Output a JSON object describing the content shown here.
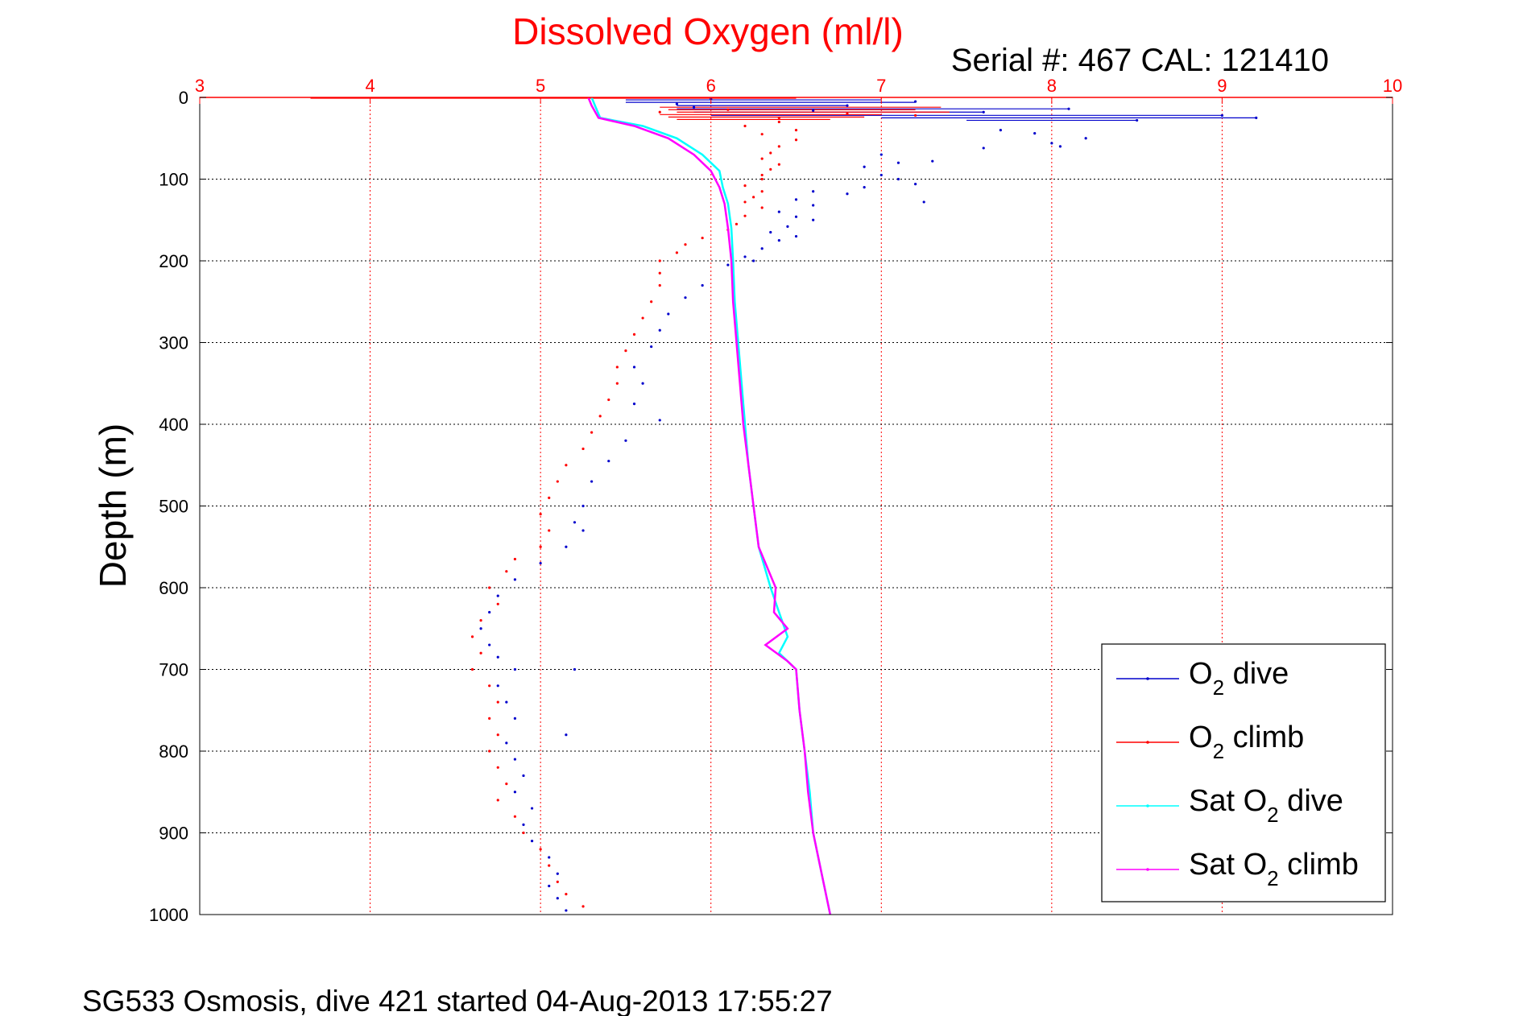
{
  "chart_data": {
    "type": "scatter",
    "title": "Dissolved Oxygen (ml/l)",
    "serial_label": "Serial #: 467  CAL: 121410",
    "ylabel": "Depth (m)",
    "footer": "SG533 Osmosis, dive 421 started 04-Aug-2013 17:55:27",
    "xlim": [
      3,
      10
    ],
    "ylim": [
      0,
      1000
    ],
    "y_reversed": true,
    "x_axis_position": "top",
    "x_ticks": [
      3,
      4,
      5,
      6,
      7,
      8,
      9,
      10
    ],
    "y_ticks": [
      0,
      100,
      200,
      300,
      400,
      500,
      600,
      700,
      800,
      900,
      1000
    ],
    "grid": true,
    "legend_position": "bottom-right",
    "series": [
      {
        "name": "O2 dive",
        "legend_main": "O",
        "legend_sub": "2",
        "legend_rest": " dive",
        "color": "#0000cc",
        "mode": "points",
        "points": [
          [
            6.0,
            2
          ],
          [
            7.2,
            5
          ],
          [
            5.8,
            8
          ],
          [
            6.8,
            10
          ],
          [
            8.1,
            14
          ],
          [
            7.6,
            18
          ],
          [
            9.0,
            22
          ],
          [
            9.2,
            25
          ],
          [
            8.5,
            28
          ],
          [
            5.9,
            12
          ],
          [
            6.6,
            16
          ],
          [
            7.7,
            40
          ],
          [
            7.9,
            44
          ],
          [
            8.2,
            50
          ],
          [
            8.0,
            56
          ],
          [
            7.6,
            62
          ],
          [
            8.05,
            60
          ],
          [
            7.0,
            70
          ],
          [
            7.1,
            80
          ],
          [
            7.3,
            78
          ],
          [
            6.9,
            85
          ],
          [
            7.0,
            95
          ],
          [
            7.1,
            100
          ],
          [
            7.2,
            106
          ],
          [
            6.9,
            110
          ],
          [
            6.6,
            115
          ],
          [
            6.8,
            118
          ],
          [
            7.25,
            128
          ],
          [
            6.5,
            125
          ],
          [
            6.6,
            132
          ],
          [
            6.4,
            140
          ],
          [
            6.5,
            146
          ],
          [
            6.6,
            150
          ],
          [
            6.45,
            158
          ],
          [
            6.35,
            165
          ],
          [
            6.5,
            170
          ],
          [
            6.4,
            175
          ],
          [
            6.3,
            185
          ],
          [
            6.2,
            195
          ],
          [
            6.25,
            200
          ],
          [
            6.1,
            205
          ],
          [
            5.95,
            230
          ],
          [
            5.85,
            245
          ],
          [
            5.75,
            265
          ],
          [
            5.7,
            285
          ],
          [
            5.65,
            305
          ],
          [
            5.55,
            330
          ],
          [
            5.6,
            350
          ],
          [
            5.55,
            375
          ],
          [
            5.7,
            395
          ],
          [
            5.5,
            420
          ],
          [
            5.4,
            445
          ],
          [
            5.3,
            470
          ],
          [
            5.25,
            500
          ],
          [
            5.2,
            520
          ],
          [
            5.25,
            530
          ],
          [
            5.15,
            550
          ],
          [
            5.0,
            570
          ],
          [
            4.85,
            590
          ],
          [
            4.75,
            610
          ],
          [
            4.7,
            630
          ],
          [
            4.65,
            650
          ],
          [
            4.7,
            670
          ],
          [
            4.75,
            685
          ],
          [
            4.85,
            700
          ],
          [
            5.2,
            700
          ],
          [
            4.75,
            720
          ],
          [
            4.8,
            740
          ],
          [
            4.85,
            760
          ],
          [
            5.15,
            780
          ],
          [
            4.8,
            790
          ],
          [
            4.85,
            810
          ],
          [
            4.9,
            830
          ],
          [
            4.85,
            850
          ],
          [
            4.95,
            870
          ],
          [
            4.9,
            890
          ],
          [
            4.95,
            910
          ],
          [
            5.05,
            930
          ],
          [
            5.1,
            950
          ],
          [
            5.05,
            965
          ],
          [
            5.1,
            980
          ],
          [
            5.15,
            995
          ]
        ]
      },
      {
        "name": "O2 climb",
        "legend_main": "O",
        "legend_sub": "2",
        "legend_rest": " climb",
        "color": "#ff0000",
        "mode": "points",
        "points": [
          [
            6.1,
            15
          ],
          [
            6.8,
            20
          ],
          [
            7.2,
            22
          ],
          [
            6.4,
            25
          ],
          [
            5.7,
            18
          ],
          [
            6.2,
            35
          ],
          [
            6.4,
            30
          ],
          [
            6.5,
            40
          ],
          [
            6.3,
            45
          ],
          [
            6.5,
            52
          ],
          [
            6.4,
            60
          ],
          [
            6.35,
            68
          ],
          [
            6.3,
            75
          ],
          [
            6.4,
            82
          ],
          [
            6.35,
            88
          ],
          [
            6.3,
            95
          ],
          [
            6.3,
            100
          ],
          [
            6.2,
            108
          ],
          [
            6.3,
            115
          ],
          [
            6.25,
            122
          ],
          [
            6.2,
            128
          ],
          [
            6.3,
            135
          ],
          [
            6.2,
            145
          ],
          [
            6.15,
            155
          ],
          [
            6.1,
            162
          ],
          [
            5.95,
            172
          ],
          [
            5.85,
            180
          ],
          [
            5.8,
            190
          ],
          [
            5.7,
            200
          ],
          [
            5.7,
            215
          ],
          [
            5.7,
            230
          ],
          [
            5.65,
            250
          ],
          [
            5.6,
            270
          ],
          [
            5.55,
            290
          ],
          [
            5.5,
            310
          ],
          [
            5.45,
            330
          ],
          [
            5.45,
            350
          ],
          [
            5.4,
            370
          ],
          [
            5.35,
            390
          ],
          [
            5.3,
            410
          ],
          [
            5.25,
            430
          ],
          [
            5.15,
            450
          ],
          [
            5.1,
            470
          ],
          [
            5.05,
            490
          ],
          [
            5.0,
            510
          ],
          [
            5.05,
            530
          ],
          [
            5.0,
            550
          ],
          [
            4.85,
            565
          ],
          [
            4.8,
            580
          ],
          [
            4.7,
            600
          ],
          [
            4.75,
            620
          ],
          [
            4.65,
            640
          ],
          [
            4.6,
            660
          ],
          [
            4.65,
            680
          ],
          [
            4.6,
            700
          ],
          [
            4.7,
            720
          ],
          [
            4.75,
            740
          ],
          [
            4.7,
            760
          ],
          [
            4.75,
            780
          ],
          [
            4.7,
            800
          ],
          [
            4.75,
            820
          ],
          [
            4.8,
            840
          ],
          [
            4.75,
            860
          ],
          [
            4.85,
            880
          ],
          [
            4.9,
            900
          ],
          [
            5.0,
            920
          ],
          [
            5.05,
            940
          ],
          [
            5.1,
            960
          ],
          [
            5.15,
            975
          ],
          [
            5.25,
            990
          ]
        ]
      },
      {
        "name": "Sat O2 dive",
        "legend_main": "Sat O",
        "legend_sub": "2",
        "legend_rest": " dive",
        "color": "#00ffff",
        "mode": "line",
        "points": [
          [
            5.3,
            0
          ],
          [
            5.32,
            10
          ],
          [
            5.35,
            25
          ],
          [
            5.6,
            35
          ],
          [
            5.8,
            50
          ],
          [
            5.95,
            70
          ],
          [
            6.05,
            90
          ],
          [
            6.07,
            110
          ],
          [
            6.1,
            130
          ],
          [
            6.12,
            160
          ],
          [
            6.13,
            200
          ],
          [
            6.14,
            250
          ],
          [
            6.16,
            300
          ],
          [
            6.18,
            350
          ],
          [
            6.2,
            400
          ],
          [
            6.22,
            450
          ],
          [
            6.25,
            500
          ],
          [
            6.28,
            550
          ],
          [
            6.35,
            600
          ],
          [
            6.4,
            630
          ],
          [
            6.45,
            660
          ],
          [
            6.4,
            680
          ],
          [
            6.5,
            700
          ],
          [
            6.52,
            750
          ],
          [
            6.55,
            800
          ],
          [
            6.58,
            850
          ],
          [
            6.6,
            900
          ],
          [
            6.65,
            950
          ],
          [
            6.7,
            1000
          ]
        ]
      },
      {
        "name": "Sat O2 climb",
        "legend_main": "Sat O",
        "legend_sub": "2",
        "legend_rest": " climb",
        "color": "#ff00ff",
        "mode": "line",
        "points": [
          [
            5.28,
            0
          ],
          [
            5.3,
            10
          ],
          [
            5.34,
            25
          ],
          [
            5.55,
            35
          ],
          [
            5.75,
            50
          ],
          [
            5.9,
            70
          ],
          [
            6.0,
            90
          ],
          [
            6.05,
            110
          ],
          [
            6.08,
            130
          ],
          [
            6.1,
            160
          ],
          [
            6.12,
            200
          ],
          [
            6.13,
            250
          ],
          [
            6.15,
            300
          ],
          [
            6.17,
            350
          ],
          [
            6.19,
            400
          ],
          [
            6.22,
            450
          ],
          [
            6.25,
            500
          ],
          [
            6.28,
            550
          ],
          [
            6.38,
            600
          ],
          [
            6.37,
            630
          ],
          [
            6.45,
            650
          ],
          [
            6.32,
            670
          ],
          [
            6.45,
            690
          ],
          [
            6.5,
            700
          ],
          [
            6.52,
            750
          ],
          [
            6.55,
            800
          ],
          [
            6.57,
            850
          ],
          [
            6.6,
            900
          ],
          [
            6.65,
            950
          ],
          [
            6.7,
            1000
          ]
        ]
      }
    ],
    "spikes": [
      {
        "series": "O2 dive",
        "color": "#0000cc",
        "from": [
          5.5,
          3
        ],
        "to": [
          7.0,
          3
        ]
      },
      {
        "series": "O2 dive",
        "color": "#0000cc",
        "from": [
          5.5,
          6
        ],
        "to": [
          7.2,
          6
        ]
      },
      {
        "series": "O2 dive",
        "color": "#0000cc",
        "from": [
          5.8,
          10
        ],
        "to": [
          6.8,
          10
        ]
      },
      {
        "series": "O2 dive",
        "color": "#0000cc",
        "from": [
          5.8,
          14
        ],
        "to": [
          8.1,
          14
        ]
      },
      {
        "series": "O2 dive",
        "color": "#0000cc",
        "from": [
          5.9,
          18
        ],
        "to": [
          7.6,
          18
        ]
      },
      {
        "series": "O2 dive",
        "color": "#0000cc",
        "from": [
          6.0,
          22
        ],
        "to": [
          9.0,
          22
        ]
      },
      {
        "series": "O2 dive",
        "color": "#0000cc",
        "from": [
          7.0,
          25
        ],
        "to": [
          9.2,
          25
        ]
      },
      {
        "series": "O2 dive",
        "color": "#0000cc",
        "from": [
          7.5,
          28
        ],
        "to": [
          8.5,
          28
        ]
      },
      {
        "series": "O2 climb",
        "color": "#ff0000",
        "from": [
          3.65,
          1
        ],
        "to": [
          6.5,
          1
        ]
      },
      {
        "series": "O2 climb",
        "color": "#ff0000",
        "from": [
          5.7,
          12
        ],
        "to": [
          7.35,
          12
        ]
      },
      {
        "series": "O2 climb",
        "color": "#ff0000",
        "from": [
          5.75,
          15
        ],
        "to": [
          7.2,
          15
        ]
      },
      {
        "series": "O2 climb",
        "color": "#ff0000",
        "from": [
          5.8,
          18
        ],
        "to": [
          7.4,
          18
        ]
      },
      {
        "series": "O2 climb",
        "color": "#ff0000",
        "from": [
          5.7,
          21
        ],
        "to": [
          7.0,
          21
        ]
      },
      {
        "series": "O2 climb",
        "color": "#ff0000",
        "from": [
          5.75,
          24
        ],
        "to": [
          6.9,
          24
        ]
      },
      {
        "series": "O2 climb",
        "color": "#ff0000",
        "from": [
          5.8,
          27
        ],
        "to": [
          6.7,
          27
        ]
      }
    ]
  }
}
